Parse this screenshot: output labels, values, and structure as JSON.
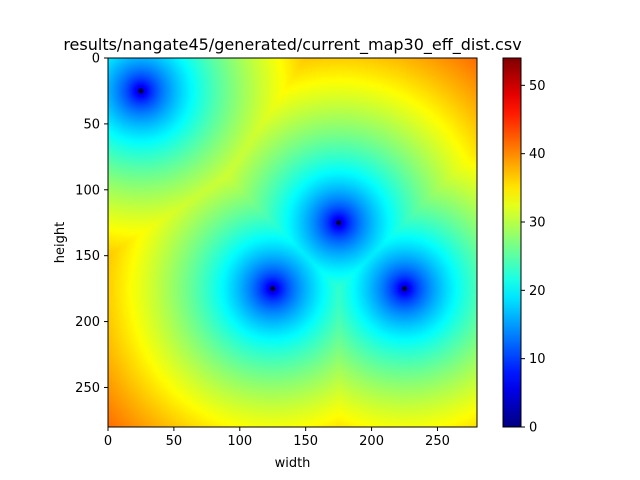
{
  "chart_data": {
    "type": "heatmap",
    "title": "results/nangate45/generated/current_map30_eff_dist.csv",
    "xlabel": "width",
    "ylabel": "height",
    "xlim": [
      0,
      280
    ],
    "ylim": [
      280,
      0
    ],
    "x_ticks": [
      0,
      50,
      100,
      150,
      200,
      250
    ],
    "y_ticks": [
      0,
      50,
      100,
      150,
      200,
      250
    ],
    "colormap": "jet",
    "colorbar": {
      "min": 0,
      "max": 54,
      "ticks": [
        0,
        10,
        20,
        30,
        40,
        50
      ]
    },
    "sources": [
      {
        "x": 25,
        "y": 25
      },
      {
        "x": 175,
        "y": 125
      },
      {
        "x": 125,
        "y": 175
      },
      {
        "x": 225,
        "y": 175
      }
    ],
    "field": "effective distance to nearest source, roughly sqrt of Euclidean distance scaled so value ≈ 54 at corners"
  }
}
